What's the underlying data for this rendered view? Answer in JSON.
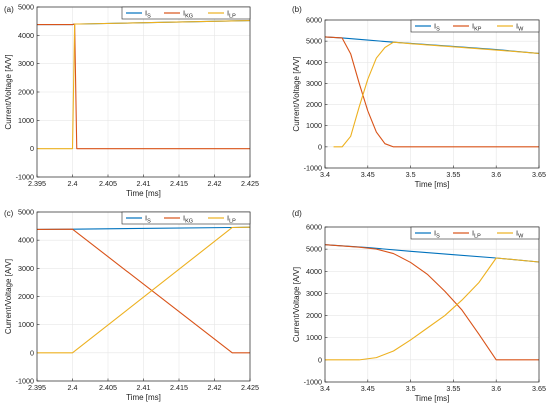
{
  "colors": {
    "IS": "#0072BD",
    "IRED": "#D95319",
    "IYEL": "#EDB120"
  },
  "chart_data": [
    {
      "type": "line",
      "panel_label": "(a)",
      "xlabel": "Time [ms]",
      "ylabel": "Current/Voltage [A/V]",
      "xlim": [
        2.395,
        2.425
      ],
      "ylim": [
        -1000,
        5000
      ],
      "xticks": [
        "2.395",
        "2.4",
        "2.405",
        "2.41",
        "2.415",
        "2.42",
        "2.425"
      ],
      "yticks": [
        "-1000",
        "0",
        "1000",
        "2000",
        "3000",
        "4000",
        "5000"
      ],
      "grid": true,
      "legend": "top-right",
      "series": [
        {
          "name": "S",
          "color_key": "IS",
          "x": [
            2.395,
            2.4,
            2.4003,
            2.401,
            2.425
          ],
          "y": [
            4380,
            4380,
            4400,
            4400,
            4520
          ]
        },
        {
          "name": "KG",
          "color_key": "IRED",
          "x": [
            2.395,
            2.4,
            2.4003,
            2.4006,
            2.425
          ],
          "y": [
            4380,
            4380,
            4400,
            0,
            0
          ]
        },
        {
          "name": "LP",
          "color_key": "IYEL",
          "x": [
            2.395,
            2.4,
            2.4003,
            2.401,
            2.425
          ],
          "y": [
            0,
            0,
            4400,
            4400,
            4520
          ]
        }
      ]
    },
    {
      "type": "line",
      "panel_label": "(b)",
      "xlabel": "Time [ms]",
      "ylabel": "Current/Voltage [A/V]",
      "xlim": [
        3.4,
        3.65
      ],
      "ylim": [
        -1000,
        6000
      ],
      "xticks": [
        "3.4",
        "3.45",
        "3.5",
        "3.55",
        "3.6",
        "3.65"
      ],
      "yticks": [
        "-1000",
        "0",
        "1000",
        "2000",
        "3000",
        "4000",
        "5000",
        "6000"
      ],
      "grid": true,
      "legend": "top-right",
      "series": [
        {
          "name": "S",
          "color_key": "IS",
          "x": [
            3.4,
            3.42,
            3.45,
            3.48,
            3.55,
            3.6,
            3.65
          ],
          "y": [
            5200,
            5150,
            5050,
            4950,
            4750,
            4600,
            4420
          ]
        },
        {
          "name": "KP",
          "color_key": "IRED",
          "x": [
            3.4,
            3.42,
            3.43,
            3.44,
            3.45,
            3.46,
            3.47,
            3.48,
            3.5,
            3.55,
            3.6,
            3.65
          ],
          "y": [
            5200,
            5150,
            4400,
            3000,
            1700,
            700,
            150,
            0,
            0,
            0,
            0,
            0
          ]
        },
        {
          "name": "W",
          "color_key": "IYEL",
          "x": [
            3.41,
            3.42,
            3.43,
            3.44,
            3.45,
            3.46,
            3.47,
            3.48,
            3.5,
            3.55,
            3.6,
            3.65
          ],
          "y": [
            0,
            0,
            500,
            1900,
            3200,
            4200,
            4700,
            4950,
            4880,
            4730,
            4580,
            4420
          ]
        }
      ]
    },
    {
      "type": "line",
      "panel_label": "(c)",
      "xlabel": "Time [ms]",
      "ylabel": "Current/Voltage [A/V]",
      "xlim": [
        2.395,
        2.425
      ],
      "ylim": [
        -1000,
        5000
      ],
      "xticks": [
        "2.395",
        "2.4",
        "2.405",
        "2.41",
        "2.415",
        "2.42",
        "2.425"
      ],
      "yticks": [
        "-1000",
        "0",
        "1000",
        "2000",
        "3000",
        "4000",
        "5000"
      ],
      "grid": true,
      "legend": "top-right",
      "series": [
        {
          "name": "S",
          "color_key": "IS",
          "x": [
            2.395,
            2.4,
            2.4225,
            2.425
          ],
          "y": [
            4380,
            4390,
            4450,
            4460
          ]
        },
        {
          "name": "KG",
          "color_key": "IRED",
          "x": [
            2.395,
            2.4,
            2.4225,
            2.425
          ],
          "y": [
            4380,
            4390,
            0,
            0
          ]
        },
        {
          "name": "LP",
          "color_key": "IYEL",
          "x": [
            2.395,
            2.4,
            2.4225,
            2.425
          ],
          "y": [
            0,
            0,
            4450,
            4460
          ]
        }
      ]
    },
    {
      "type": "line",
      "panel_label": "(d)",
      "xlabel": "Time [ms]",
      "ylabel": "Current/Voltage [A/V]",
      "xlim": [
        3.4,
        3.65
      ],
      "ylim": [
        -1000,
        6000
      ],
      "xticks": [
        "3.4",
        "3.45",
        "3.5",
        "3.55",
        "3.6",
        "3.65"
      ],
      "yticks": [
        "-1000",
        "0",
        "1000",
        "2000",
        "3000",
        "4000",
        "5000",
        "6000"
      ],
      "grid": true,
      "legend": "top-right",
      "series": [
        {
          "name": "S",
          "color_key": "IS",
          "x": [
            3.4,
            3.45,
            3.5,
            3.55,
            3.6,
            3.65
          ],
          "y": [
            5200,
            5070,
            4900,
            4750,
            4600,
            4420
          ]
        },
        {
          "name": "LP",
          "color_key": "IRED",
          "x": [
            3.4,
            3.44,
            3.46,
            3.48,
            3.5,
            3.52,
            3.54,
            3.56,
            3.58,
            3.6,
            3.65
          ],
          "y": [
            5200,
            5090,
            5000,
            4800,
            4400,
            3850,
            3100,
            2250,
            1150,
            0,
            0
          ]
        },
        {
          "name": "W",
          "color_key": "IYEL",
          "x": [
            3.4,
            3.44,
            3.46,
            3.48,
            3.5,
            3.52,
            3.54,
            3.56,
            3.58,
            3.6,
            3.65
          ],
          "y": [
            0,
            0,
            100,
            400,
            900,
            1450,
            2000,
            2700,
            3500,
            4600,
            4420
          ]
        }
      ]
    }
  ]
}
